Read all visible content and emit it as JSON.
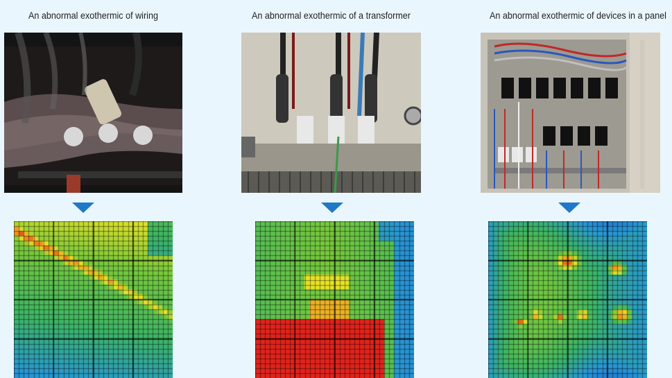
{
  "panels": [
    {
      "id": "wiring",
      "title": "An abnormal exothermic of wiring",
      "photo_icon": "wiring-photo",
      "arrow_icon": "down-arrow-icon",
      "thermal_icon": "thermal-image"
    },
    {
      "id": "transformer",
      "title": "An abnormal exothermic of a transformer",
      "photo_icon": "transformer-photo",
      "arrow_icon": "down-arrow-icon",
      "thermal_icon": "thermal-image"
    },
    {
      "id": "panel",
      "title": "An abnormal exothermic of devices in a panel",
      "photo_icon": "electrical-panel-photo",
      "arrow_icon": "down-arrow-icon",
      "thermal_icon": "thermal-image"
    }
  ],
  "colors": {
    "background": "#eaf6fd",
    "arrow": "#1f78c8",
    "thermal_hot": "#e0261c",
    "thermal_warm": "#f08a1c",
    "thermal_mid": "#e8e020",
    "thermal_cool": "#52b84a",
    "thermal_cold": "#2a6ad0"
  }
}
